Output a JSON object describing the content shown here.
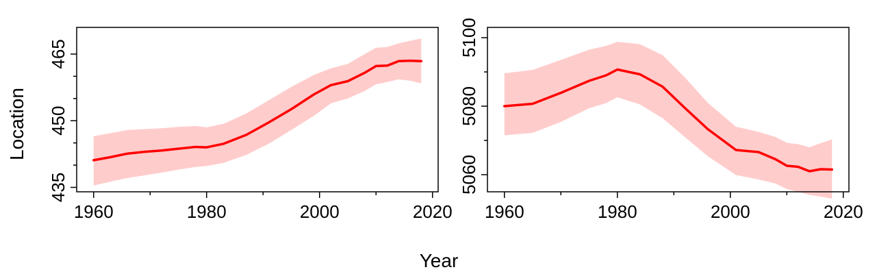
{
  "figure": {
    "xlabel": "Year",
    "ylabel": "Location"
  },
  "colors": {
    "line": "#ff0000",
    "band": "#ffcccc",
    "axis": "#000000"
  },
  "chart_data": [
    {
      "type": "line",
      "title": "",
      "xlim": [
        1957,
        2021
      ],
      "ylim": [
        434,
        471
      ],
      "xticks": [
        1960,
        1980,
        2000,
        2020
      ],
      "xminor": [
        1970,
        1990,
        2010
      ],
      "yticks": [
        435,
        450,
        465
      ],
      "yminor": [
        440,
        445,
        455,
        460
      ],
      "series": [
        {
          "x": [
            1960,
            1963,
            1966,
            1969,
            1972,
            1975,
            1978,
            1980,
            1983,
            1987,
            1991,
            1995,
            1999,
            2002,
            2005,
            2008,
            2010,
            2012,
            2014,
            2016,
            2018
          ],
          "y": [
            441.1,
            441.8,
            442.6,
            443.0,
            443.3,
            443.7,
            444.1,
            444.0,
            444.8,
            446.8,
            449.6,
            452.6,
            455.9,
            458.0,
            458.9,
            460.8,
            462.3,
            462.4,
            463.4,
            463.5,
            463.4
          ],
          "lower": [
            435.4,
            436.3,
            437.1,
            437.7,
            438.3,
            439.0,
            439.6,
            439.8,
            440.5,
            442.3,
            444.8,
            447.9,
            451.1,
            453.9,
            455.0,
            456.7,
            458.2,
            458.7,
            459.3,
            459.0,
            458.4
          ],
          "upper": [
            446.5,
            447.2,
            447.9,
            448.1,
            448.3,
            448.6,
            448.8,
            448.5,
            449.3,
            451.6,
            454.6,
            457.6,
            460.3,
            461.8,
            462.8,
            465.0,
            466.4,
            466.6,
            467.4,
            468.0,
            468.5
          ]
        }
      ]
    },
    {
      "type": "line",
      "title": "",
      "xlim": [
        1957,
        2021
      ],
      "ylim": [
        5055,
        5103
      ],
      "xticks": [
        1960,
        1980,
        2000,
        2020
      ],
      "xminor": [
        1970,
        1990,
        2010
      ],
      "yticks": [
        5060,
        5080,
        5100
      ],
      "yminor": [
        5070,
        5090
      ],
      "series": [
        {
          "x": [
            1960,
            1965,
            1970,
            1975,
            1978,
            1980,
            1984,
            1988,
            1992,
            1996,
            2001,
            2005,
            2008,
            2010,
            2012,
            2014,
            2016,
            2018
          ],
          "y": [
            5080.0,
            5080.7,
            5083.9,
            5087.4,
            5089.0,
            5090.7,
            5089.3,
            5085.7,
            5079.4,
            5073.3,
            5067.2,
            5066.6,
            5064.5,
            5062.6,
            5062.3,
            5061.0,
            5061.6,
            5061.5
          ],
          "lower": [
            5071.5,
            5072.2,
            5075.4,
            5079.4,
            5080.9,
            5082.6,
            5080.5,
            5076.5,
            5070.9,
            5065.4,
            5059.9,
            5058.6,
            5057.4,
            5055.8,
            5055.0,
            5054.1,
            5053.6,
            5053.0
          ],
          "upper": [
            5089.6,
            5090.6,
            5093.5,
            5096.5,
            5097.6,
            5098.8,
            5098.1,
            5094.9,
            5088.3,
            5081.0,
            5074.0,
            5072.5,
            5071.0,
            5069.3,
            5068.9,
            5068.0,
            5069.2,
            5070.3
          ]
        }
      ]
    }
  ]
}
